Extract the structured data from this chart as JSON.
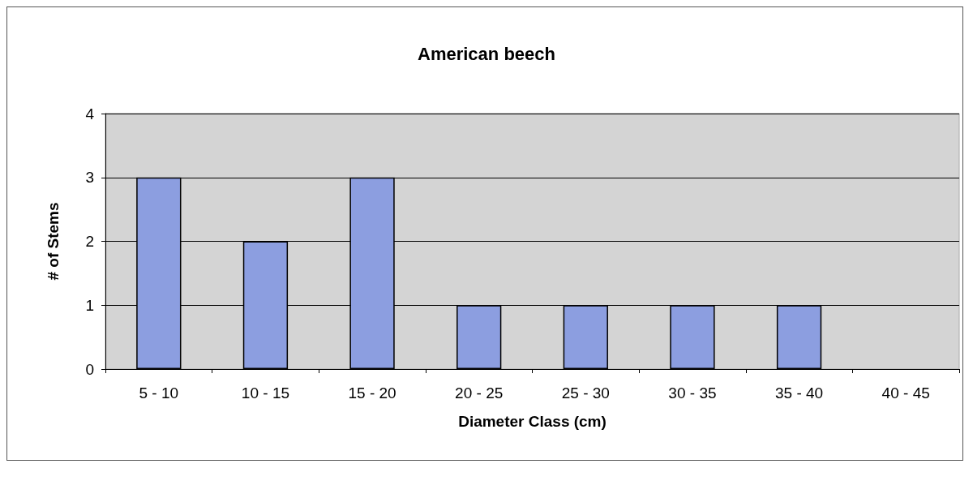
{
  "chart_data": {
    "type": "bar",
    "title": "American beech",
    "xlabel": "Diameter Class (cm)",
    "ylabel": "# of Stems",
    "categories": [
      "5 - 10",
      "10 - 15",
      "15 - 20",
      "20 - 25",
      "25 - 30",
      "30 - 35",
      "35 - 40",
      "40 - 45"
    ],
    "values": [
      3,
      2,
      3,
      1,
      1,
      1,
      1,
      0
    ],
    "color": "#8c9ee0",
    "ylim": [
      0,
      4
    ],
    "yticks": [
      0,
      1,
      2,
      3,
      4
    ],
    "grid": "y"
  }
}
